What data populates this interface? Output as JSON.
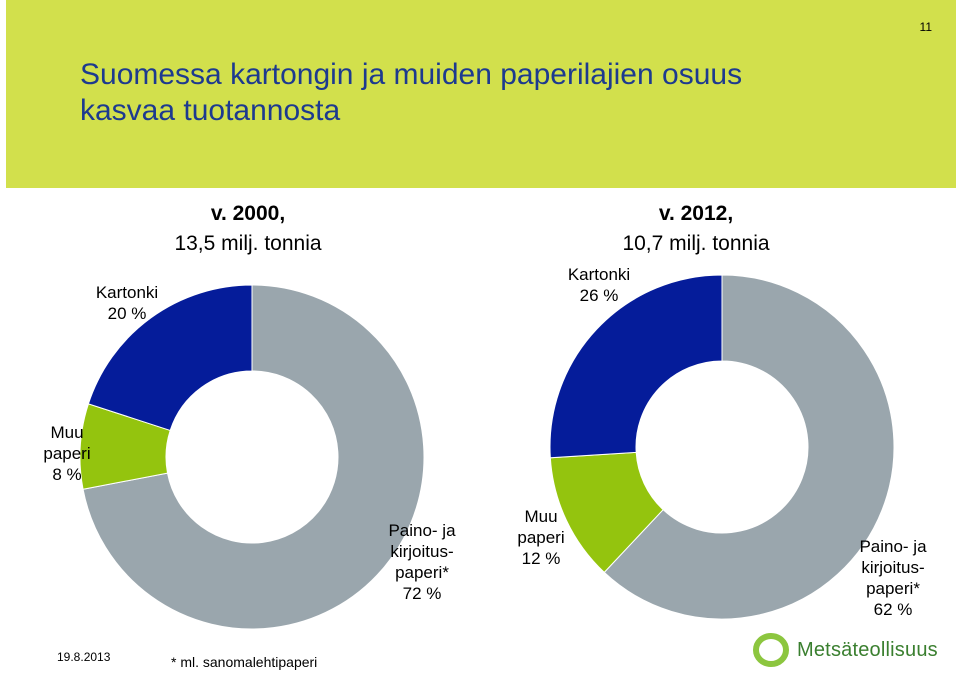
{
  "page_number": "11",
  "title_lines": [
    "Suomessa kartongin ja muiden paperilajien osuus",
    "kasvaa tuotannosta"
  ],
  "footer": {
    "date": "19.8.2013",
    "note": "* ml. sanomalehtipaperi",
    "logo_text": "Metsäteollisuus"
  },
  "colors": {
    "header_bg": "#d2e04c",
    "title": "#1d3a8f",
    "kartonki": "#051c9a",
    "muu_paperi": "#94c40e",
    "paino": "#9aa6ad",
    "logo_green": "#8cc63f"
  },
  "chart_data": [
    {
      "type": "pie",
      "style": "donut",
      "heading_bold": "v. 2000,",
      "heading_rest": "13,5 milj. tonnia",
      "slices": [
        {
          "key": "paino",
          "label_lines": [
            "Paino- ja",
            "kirjoitus-",
            "paperi*",
            "72 %"
          ],
          "value": 72
        },
        {
          "key": "muu_paperi",
          "label_lines": [
            "Muu",
            "paperi",
            "8 %"
          ],
          "value": 8
        },
        {
          "key": "kartonki",
          "label_lines": [
            "Kartonki",
            "20 %"
          ],
          "value": 20
        }
      ]
    },
    {
      "type": "pie",
      "style": "donut",
      "heading_bold": "v. 2012,",
      "heading_rest": "10,7 milj. tonnia",
      "slices": [
        {
          "key": "paino",
          "label_lines": [
            "Paino- ja",
            "kirjoitus-",
            "paperi*",
            "62 %"
          ],
          "value": 62
        },
        {
          "key": "muu_paperi",
          "label_lines": [
            "Muu",
            "paperi",
            "12 %"
          ],
          "value": 12
        },
        {
          "key": "kartonki",
          "label_lines": [
            "Kartonki",
            "26 %"
          ],
          "value": 26
        }
      ]
    }
  ]
}
